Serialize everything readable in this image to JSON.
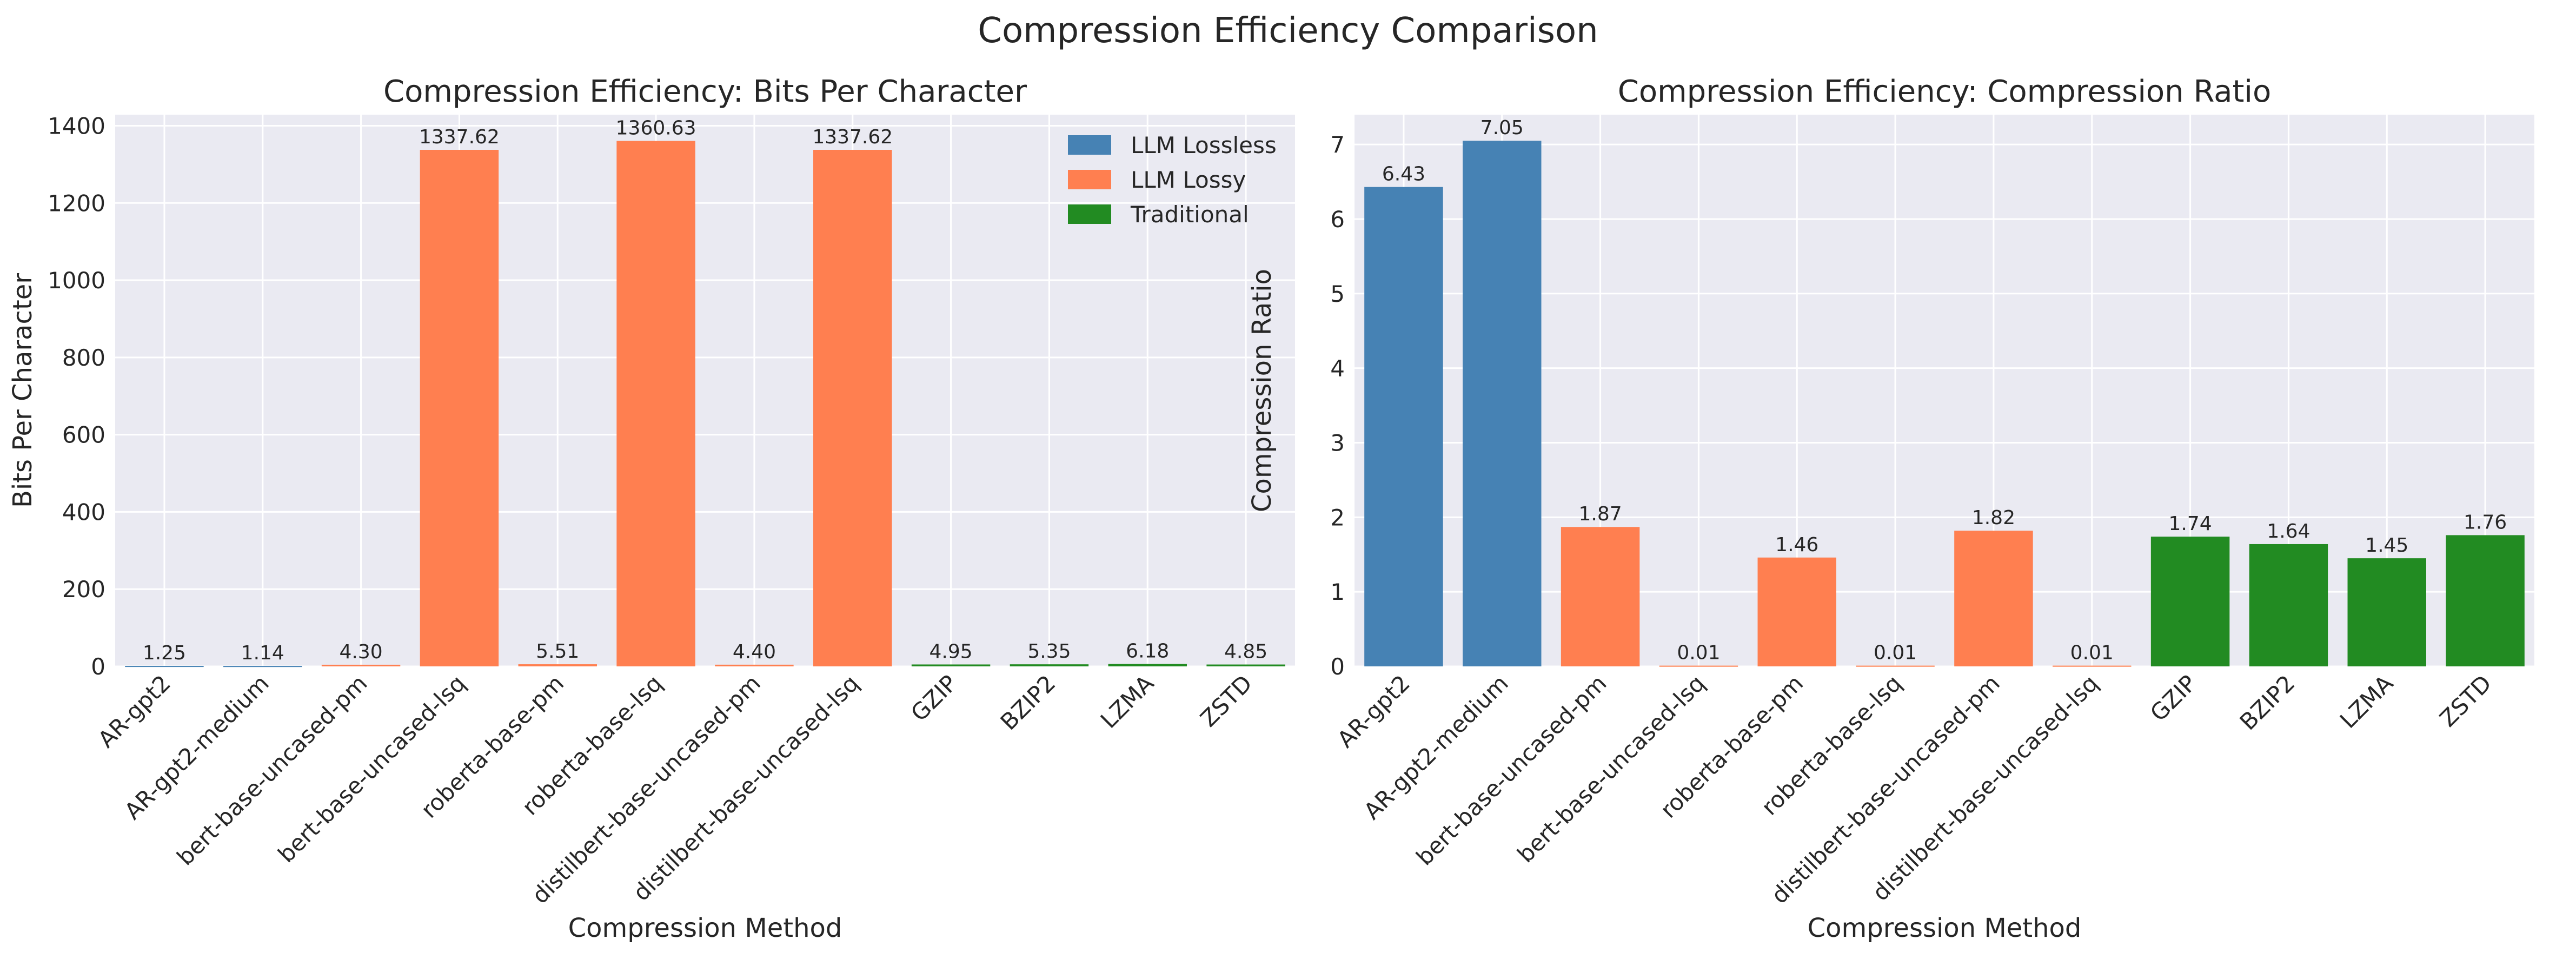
{
  "figure": {
    "suptitle": "Compression Efficiency Comparison"
  },
  "colors": {
    "llm_lossless": "#4682B4",
    "llm_lossy": "#FF7F50",
    "traditional": "#228B22",
    "plot_background": "#EAEAF2",
    "grid": "#FFFFFF",
    "text": "#262626"
  },
  "chart_data": [
    {
      "type": "bar",
      "title": "Compression Efficiency: Bits Per Character",
      "xlabel": "Compression Method",
      "ylabel": "Bits Per Character",
      "ylim": [
        0,
        1428.66
      ],
      "yticks": [
        0,
        200,
        400,
        600,
        800,
        1000,
        1200,
        1400
      ],
      "grid": true,
      "legend": {
        "placement": "top-right",
        "entries": [
          {
            "label": "LLM Lossless",
            "group": "llm_lossless"
          },
          {
            "label": "LLM Lossy",
            "group": "llm_lossy"
          },
          {
            "label": "Traditional",
            "group": "traditional"
          }
        ]
      },
      "categories": [
        "AR-gpt2",
        "AR-gpt2-medium",
        "bert-base-uncased-pm",
        "bert-base-uncased-lsq",
        "roberta-base-pm",
        "roberta-base-lsq",
        "distilbert-base-uncased-pm",
        "distilbert-base-uncased-lsq",
        "GZIP",
        "BZIP2",
        "LZMA",
        "ZSTD"
      ],
      "groups": [
        "llm_lossless",
        "llm_lossless",
        "llm_lossy",
        "llm_lossy",
        "llm_lossy",
        "llm_lossy",
        "llm_lossy",
        "llm_lossy",
        "traditional",
        "traditional",
        "traditional",
        "traditional"
      ],
      "values": [
        1.25,
        1.14,
        4.3,
        1337.62,
        5.51,
        1360.63,
        4.4,
        1337.62,
        4.95,
        5.35,
        6.18,
        4.85
      ],
      "value_labels": [
        "1.25",
        "1.14",
        "4.30",
        "1337.62",
        "5.51",
        "1360.63",
        "4.40",
        "1337.62",
        "4.95",
        "5.35",
        "6.18",
        "4.85"
      ]
    },
    {
      "type": "bar",
      "title": "Compression Efficiency: Compression Ratio",
      "xlabel": "Compression Method",
      "ylabel": "Compression Ratio",
      "ylim": [
        0,
        7.4
      ],
      "yticks": [
        0,
        1,
        2,
        3,
        4,
        5,
        6,
        7
      ],
      "grid": true,
      "categories": [
        "AR-gpt2",
        "AR-gpt2-medium",
        "bert-base-uncased-pm",
        "bert-base-uncased-lsq",
        "roberta-base-pm",
        "roberta-base-lsq",
        "distilbert-base-uncased-pm",
        "distilbert-base-uncased-lsq",
        "GZIP",
        "BZIP2",
        "LZMA",
        "ZSTD"
      ],
      "groups": [
        "llm_lossless",
        "llm_lossless",
        "llm_lossy",
        "llm_lossy",
        "llm_lossy",
        "llm_lossy",
        "llm_lossy",
        "llm_lossy",
        "traditional",
        "traditional",
        "traditional",
        "traditional"
      ],
      "values": [
        6.43,
        7.05,
        1.87,
        0.01,
        1.46,
        0.01,
        1.82,
        0.01,
        1.74,
        1.64,
        1.45,
        1.76
      ],
      "value_labels": [
        "6.43",
        "7.05",
        "1.87",
        "0.01",
        "1.46",
        "0.01",
        "1.82",
        "0.01",
        "1.74",
        "1.64",
        "1.45",
        "1.76"
      ]
    }
  ]
}
